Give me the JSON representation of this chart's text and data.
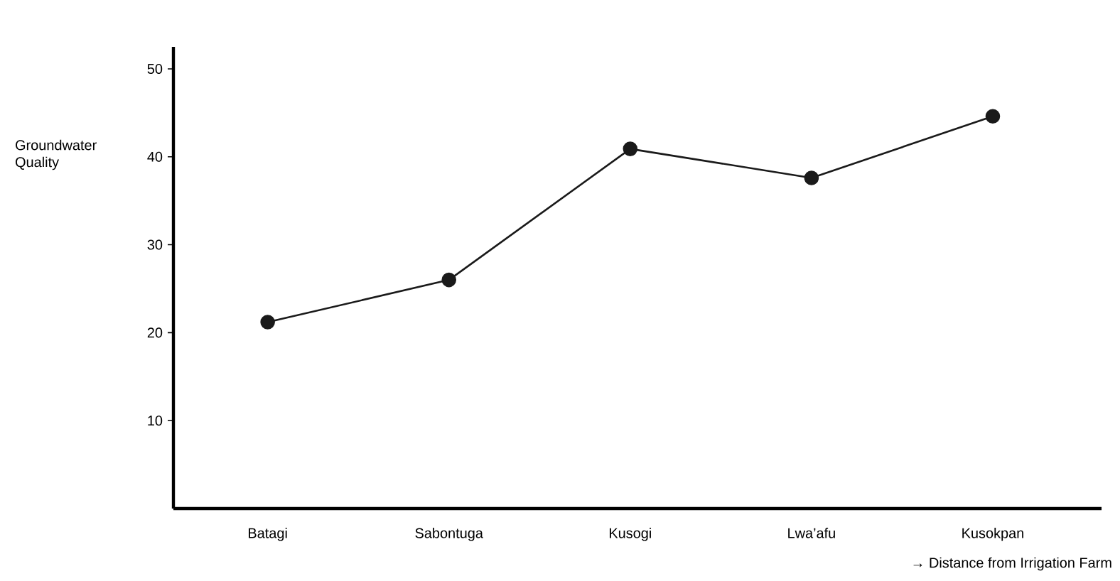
{
  "chart_data": {
    "type": "line",
    "ylabel": "Groundwater Quality",
    "xlabel": "→ Distance from Irrigation Farm",
    "categories": [
      "Batagi",
      "Sabontuga",
      "Kusogi",
      "Lwa’afu",
      "Kusokpan"
    ],
    "series": [
      {
        "color": "#1a1a1a",
        "values": [
          21.2,
          26,
          40.9,
          37.6,
          44.6
        ]
      }
    ],
    "ylim": [
      0,
      52.5
    ],
    "yticks": [
      10,
      20,
      30,
      40,
      50
    ],
    "marker": "circle",
    "line_style": "solid",
    "grid": false
  }
}
